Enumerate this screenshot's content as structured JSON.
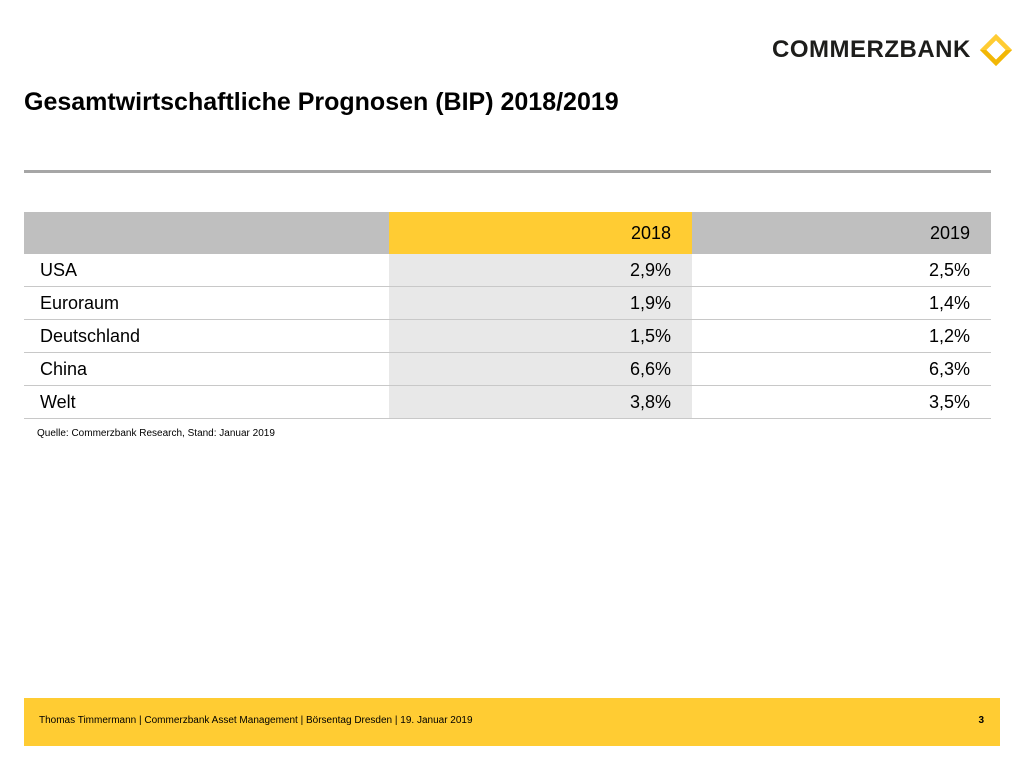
{
  "brand": {
    "name": "COMMERZBANK",
    "logo_icon": "commerzbank-ribbon-icon",
    "accent_color": "#ffcc33"
  },
  "title": "Gesamtwirtschaftliche Prognosen (BIP) 2018/2019",
  "table": {
    "headers": [
      "",
      "2018",
      "2019"
    ],
    "rows": [
      {
        "label": "USA",
        "y2018": "2,9%",
        "y2019": "2,5%"
      },
      {
        "label": "Euroraum",
        "y2018": "1,9%",
        "y2019": "1,4%"
      },
      {
        "label": "Deutschland",
        "y2018": "1,5%",
        "y2019": "1,2%"
      },
      {
        "label": "China",
        "y2018": "6,6%",
        "y2019": "6,3%"
      },
      {
        "label": "Welt",
        "y2018": "3,8%",
        "y2019": "3,5%"
      }
    ]
  },
  "source": "Quelle: Commerzbank Research, Stand: Januar 2019",
  "footer": {
    "text": "Thomas Timmermann | Commerzbank Asset Management | Börsentag Dresden | 19. Januar 2019",
    "page_number": "3"
  }
}
